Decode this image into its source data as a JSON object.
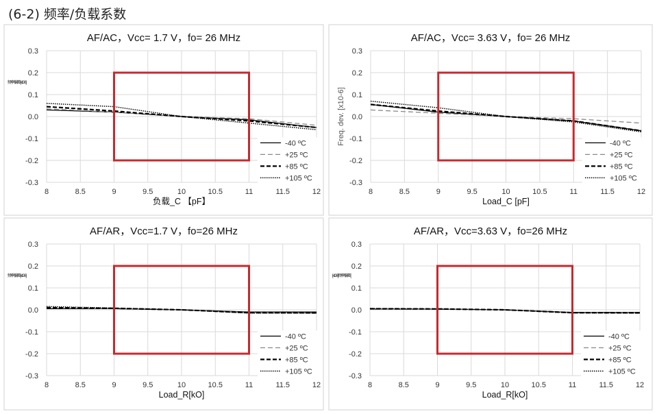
{
  "heading": "(6-2) 频率/负载系数",
  "colors": {
    "limit_box": "#c8282d",
    "grid": "#d9d9d9",
    "series": "#000000",
    "series_25": "#888888"
  },
  "chart_data": [
    {
      "type": "line",
      "title": "AF/AC，Vcc= 1.7 V，fo= 26 MHz",
      "xlabel": "负载_C 【pF】",
      "ylabel": "频率偏差 [x10-6]",
      "xlim": [
        8,
        12
      ],
      "ylim": [
        -0.3,
        0.3
      ],
      "xticks": [
        "8",
        "8.5",
        "9",
        "9.5",
        "10",
        "10.5",
        "11",
        "11.5",
        "12"
      ],
      "yticks": [
        "0.3",
        "0.2",
        "0.1",
        "0.0",
        "-0.1",
        "-0.2",
        "-0.3"
      ],
      "grid": true,
      "legend": "bottom-right",
      "limit_box": {
        "x": [
          9,
          11
        ],
        "y": [
          -0.2,
          0.2
        ]
      },
      "x": [
        8,
        9,
        10,
        11,
        12
      ],
      "series": [
        {
          "name": "-40 ºC",
          "style": "solid",
          "values": [
            0.03,
            0.02,
            0,
            -0.015,
            -0.05
          ]
        },
        {
          "name": "+25 ºC",
          "style": "dashed-gray",
          "values": [
            0.035,
            0.02,
            0,
            -0.01,
            -0.04
          ]
        },
        {
          "name": "+85 ºC",
          "style": "dashed",
          "values": [
            0.045,
            0.025,
            0,
            -0.02,
            -0.05
          ]
        },
        {
          "name": "+105 ºC",
          "style": "dotted",
          "values": [
            0.06,
            0.045,
            0,
            -0.03,
            -0.06
          ]
        }
      ]
    },
    {
      "type": "line",
      "title": "AF/AC，Vcc= 3.63 V，fo= 26 MHz",
      "xlabel": "Load_C [pF]",
      "ylabel": "Freq. dev. [x10-6]",
      "xlim": [
        8,
        12
      ],
      "ylim": [
        -0.3,
        0.3
      ],
      "xticks": [
        "8",
        "8.5",
        "9",
        "9.5",
        "10",
        "10.5",
        "11",
        "11.5",
        "12"
      ],
      "yticks": [
        "0.3",
        "0.2",
        "0.1",
        "0.0",
        "-0.1",
        "-0.2",
        "-0.3"
      ],
      "grid": true,
      "legend": "bottom-right",
      "limit_box": {
        "x": [
          9,
          11
        ],
        "y": [
          -0.2,
          0.2
        ]
      },
      "x": [
        8,
        9,
        10,
        11,
        12
      ],
      "series": [
        {
          "name": "-40 ºC",
          "style": "solid",
          "values": [
            0.055,
            0.02,
            0,
            -0.02,
            -0.065
          ]
        },
        {
          "name": "+25 ºC",
          "style": "dashed-gray",
          "values": [
            0.03,
            0.015,
            0,
            -0.01,
            -0.03
          ]
        },
        {
          "name": "+85 ºC",
          "style": "dashed",
          "values": [
            0.055,
            0.025,
            0,
            -0.02,
            -0.065
          ]
        },
        {
          "name": "+105 ºC",
          "style": "dotted",
          "values": [
            0.07,
            0.04,
            0,
            -0.025,
            -0.07
          ]
        }
      ]
    },
    {
      "type": "line",
      "title": "AF/AR，Vcc=1.7 V，fo=26 MHz",
      "xlabel": "Load_R[kO]",
      "ylabel": "频率偏差 [x10-6]",
      "xlim": [
        8,
        12
      ],
      "ylim": [
        -0.3,
        0.3
      ],
      "xticks": [
        "8",
        "8.5",
        "9",
        "9.5",
        "10",
        "10.5",
        "11",
        "11.5",
        "12"
      ],
      "yticks": [
        "0.3",
        "0.2",
        "0.1",
        "0.0",
        "-0.1",
        "-0.2",
        "-0.3"
      ],
      "grid": true,
      "legend": "bottom-right",
      "limit_box": {
        "x": [
          9,
          11
        ],
        "y": [
          -0.2,
          0.2
        ]
      },
      "x": [
        8,
        9,
        10,
        11,
        12
      ],
      "series": [
        {
          "name": "-40 ºC",
          "style": "solid",
          "values": [
            0.005,
            0.005,
            0,
            -0.01,
            -0.01
          ]
        },
        {
          "name": "+25 ºC",
          "style": "dashed-gray",
          "values": [
            0.008,
            0.006,
            0,
            -0.012,
            -0.013
          ]
        },
        {
          "name": "+85 ºC",
          "style": "dashed",
          "values": [
            0.01,
            0.007,
            0,
            -0.013,
            -0.014
          ]
        },
        {
          "name": "+105 ºC",
          "style": "dotted",
          "values": [
            0.015,
            0.008,
            0,
            -0.015,
            -0.015
          ]
        }
      ]
    },
    {
      "type": "line",
      "title": "AF/AR，Vcc=3.63 V，fo=26 MHz",
      "xlabel": "Load_R[kO]",
      "ylabel": "[x10-6] 频率偏差 [",
      "xlim": [
        8,
        12
      ],
      "ylim": [
        -0.3,
        0.3
      ],
      "xticks": [
        "8",
        "8.5",
        "9",
        "9.5",
        "10",
        "10.5",
        "11",
        "11.5",
        "12"
      ],
      "yticks": [
        "0.3",
        "0.2",
        "0.1",
        "0.0",
        "-0.1",
        "-0.2",
        "-0.3"
      ],
      "grid": true,
      "legend": "bottom-right",
      "limit_box": {
        "x": [
          9,
          11
        ],
        "y": [
          -0.2,
          0.2
        ]
      },
      "x": [
        8,
        9,
        10,
        11,
        12
      ],
      "series": [
        {
          "name": "-40 ºC",
          "style": "solid",
          "values": [
            0.003,
            0.003,
            0,
            -0.012,
            -0.012
          ]
        },
        {
          "name": "+25 ºC",
          "style": "dashed-gray",
          "values": [
            0.004,
            0.003,
            0,
            -0.013,
            -0.013
          ]
        },
        {
          "name": "+85 ºC",
          "style": "dashed",
          "values": [
            0.005,
            0.004,
            0,
            -0.013,
            -0.014
          ]
        },
        {
          "name": "+105 ºC",
          "style": "dotted",
          "values": [
            0.006,
            0.004,
            0,
            -0.014,
            -0.015
          ]
        }
      ]
    }
  ]
}
